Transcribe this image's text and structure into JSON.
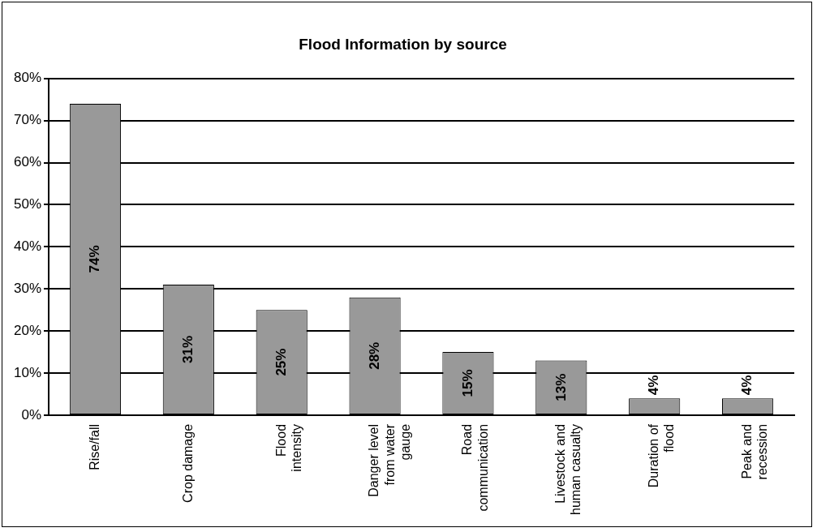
{
  "chart_data": {
    "type": "bar",
    "title": "Flood Information by source",
    "categories": [
      "Rise/fall",
      "Crop damage",
      "Flood intensity",
      "Danger level from water gauge",
      "Road communication",
      "Livestock and human casualty",
      "Duration of flood",
      "Peak and recession"
    ],
    "values": [
      74,
      31,
      25,
      28,
      15,
      13,
      4,
      4
    ],
    "value_labels": [
      "74%",
      "31%",
      "25%",
      "28%",
      "15%",
      "13%",
      "4%",
      "4%"
    ],
    "color": "#999999",
    "ylim": [
      0,
      80
    ],
    "yticks": [
      {
        "value": 0,
        "label": "0%"
      },
      {
        "value": 10,
        "label": "10%"
      },
      {
        "value": 20,
        "label": "20%"
      },
      {
        "value": 30,
        "label": "30%"
      },
      {
        "value": 40,
        "label": "40%"
      },
      {
        "value": 50,
        "label": "50%"
      },
      {
        "value": 60,
        "label": "60%"
      },
      {
        "value": 70,
        "label": "70%"
      },
      {
        "value": 80,
        "label": "80%"
      }
    ],
    "grid": "y"
  }
}
